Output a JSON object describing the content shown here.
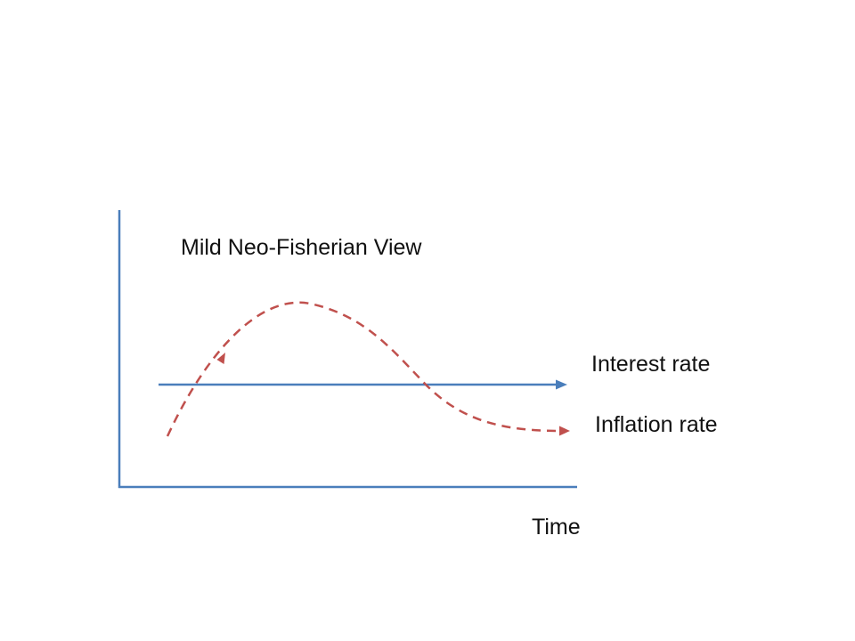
{
  "diagram": {
    "title": "Mild Neo-Fisherian View",
    "x_axis_label": "Time",
    "series": [
      {
        "id": "interest",
        "label": "Interest rate",
        "color": "#4a7ebb",
        "style": "solid"
      },
      {
        "id": "inflation",
        "label": "Inflation rate",
        "color": "#c0504d",
        "style": "dashed"
      }
    ]
  }
}
